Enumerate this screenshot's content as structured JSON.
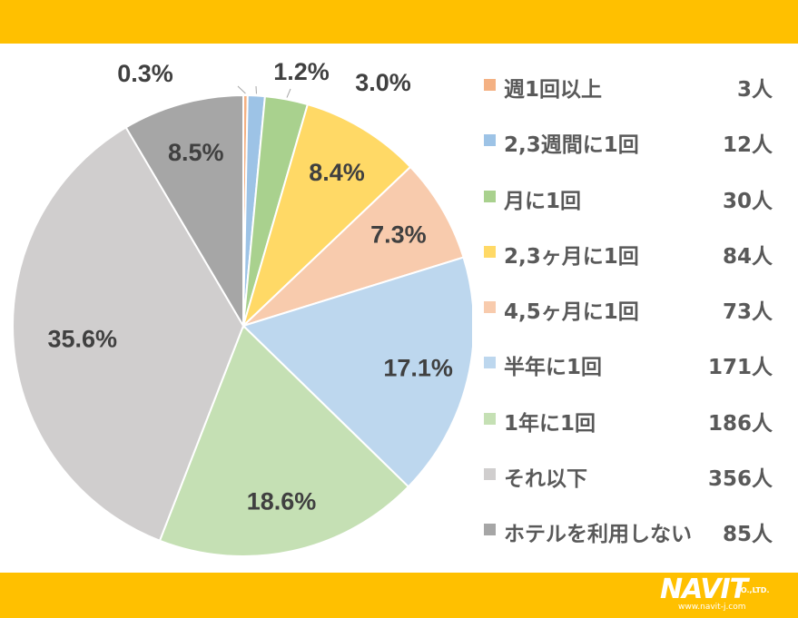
{
  "chart_data": {
    "type": "pie",
    "categories": [
      "週1回以上",
      "2,3週間に1回",
      "月に1回",
      "2,3ヶ月に1回",
      "4,5ヶ月に1回",
      "半年に1回",
      "1年に1回",
      "それ以下",
      "ホテルを利用しない"
    ],
    "values": [
      3,
      12,
      30,
      84,
      73,
      171,
      186,
      356,
      85
    ],
    "percent_labels": [
      "0.3%",
      "1.2%",
      "3.0%",
      "8.4%",
      "7.3%",
      "17.1%",
      "18.6%",
      "35.6%",
      "8.5%"
    ],
    "count_labels": [
      "3人",
      "12人",
      "30人",
      "84人",
      "73人",
      "171人",
      "186人",
      "356人",
      "85人"
    ],
    "colors": [
      "#F4B183",
      "#9DC3E6",
      "#A9D18E",
      "#FFD966",
      "#F8CBAD",
      "#BDD7EE",
      "#C5E0B4",
      "#D0CECE",
      "#A6A6A6"
    ],
    "start": "12 o'clock, clockwise",
    "legend": "right"
  },
  "colors": {
    "band": "#FFC000",
    "text": "#595959",
    "label": "#404040"
  },
  "logo": {
    "brand": "NAVIT",
    "company": "CO.,LTD.",
    "url": "www.navit-j.com"
  }
}
